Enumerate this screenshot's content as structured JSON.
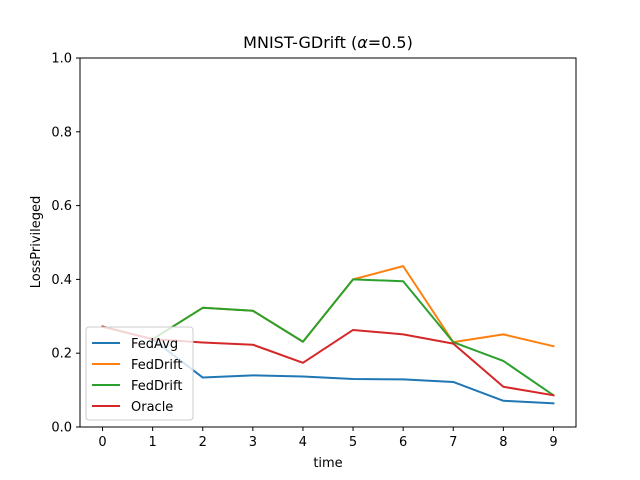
{
  "chart_data": {
    "type": "line",
    "title_main": "MNIST-GDrift (",
    "title_alpha": "α",
    "title_rest": "=0.5)",
    "xlabel": "time",
    "ylabel": "LossPrivileged",
    "x": [
      0,
      1,
      2,
      3,
      4,
      5,
      6,
      7,
      8,
      9
    ],
    "xlim": [
      -0.45,
      9.45
    ],
    "ylim": [
      0.0,
      1.0
    ],
    "xticks": [
      "0",
      "1",
      "2",
      "3",
      "4",
      "5",
      "6",
      "7",
      "8",
      "9"
    ],
    "yticks": [
      "0.0",
      "0.2",
      "0.4",
      "0.6",
      "0.8",
      "1.0"
    ],
    "grid": false,
    "legend_position": "lower-left",
    "series": [
      {
        "name": "FedAvg",
        "color": "#1f77b4",
        "values": [
          0.272,
          0.238,
          0.134,
          0.14,
          0.137,
          0.13,
          0.129,
          0.122,
          0.071,
          0.064
        ]
      },
      {
        "name": "FedDrift",
        "color": "#ff7f0e",
        "values": [
          0.272,
          0.238,
          0.323,
          0.315,
          0.231,
          0.4,
          0.436,
          0.23,
          0.251,
          0.219
        ]
      },
      {
        "name": "FedDrift",
        "color": "#2ca02c",
        "values": [
          0.272,
          0.238,
          0.323,
          0.315,
          0.231,
          0.4,
          0.395,
          0.23,
          0.179,
          0.086
        ]
      },
      {
        "name": "Oracle",
        "color": "#d62728",
        "values": [
          0.272,
          0.238,
          0.229,
          0.223,
          0.174,
          0.263,
          0.251,
          0.226,
          0.109,
          0.086
        ]
      }
    ]
  }
}
